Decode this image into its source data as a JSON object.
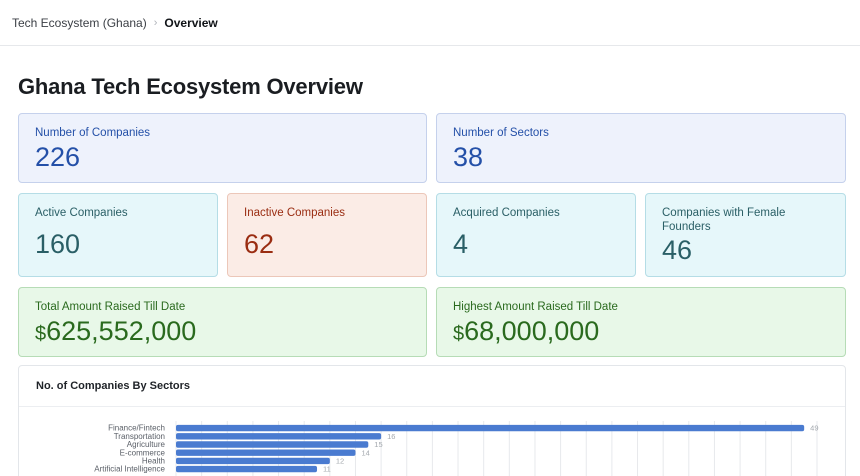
{
  "breadcrumb": {
    "root": "Tech Ecosystem (Ghana)",
    "current": "Overview"
  },
  "page": {
    "title": "Ghana Tech Ecosystem Overview"
  },
  "stats": {
    "companies": {
      "label": "Number of Companies",
      "value": "226"
    },
    "sectors": {
      "label": "Number of Sectors",
      "value": "38"
    },
    "active": {
      "label": "Active Companies",
      "value": "160"
    },
    "inactive": {
      "label": "Inactive Companies",
      "value": "62"
    },
    "acquired": {
      "label": "Acquired Companies",
      "value": "4"
    },
    "female": {
      "label": "Companies with Female Founders",
      "value": "46"
    },
    "raised": {
      "label": "Total Amount Raised Till Date",
      "currency": "$",
      "value": "625,552,000"
    },
    "highest": {
      "label": "Highest Amount Raised Till Date",
      "currency": "$",
      "value": "68,000,000"
    }
  },
  "colors": {
    "bar": "#4a7bd0",
    "grid": "#e7e9ec",
    "label": "#5b6068",
    "value_label": "#a3a8ae"
  },
  "chart_data": {
    "type": "bar",
    "orientation": "horizontal",
    "title": "No. of Companies By Sectors",
    "categories": [
      "Finance/Fintech",
      "Transportation",
      "Agriculture",
      "E-commerce",
      "Health",
      "Artificial Intelligence"
    ],
    "values": [
      49,
      16,
      15,
      14,
      12,
      11
    ],
    "xlim": [
      0,
      50
    ],
    "grid": true,
    "data_labels": true
  }
}
